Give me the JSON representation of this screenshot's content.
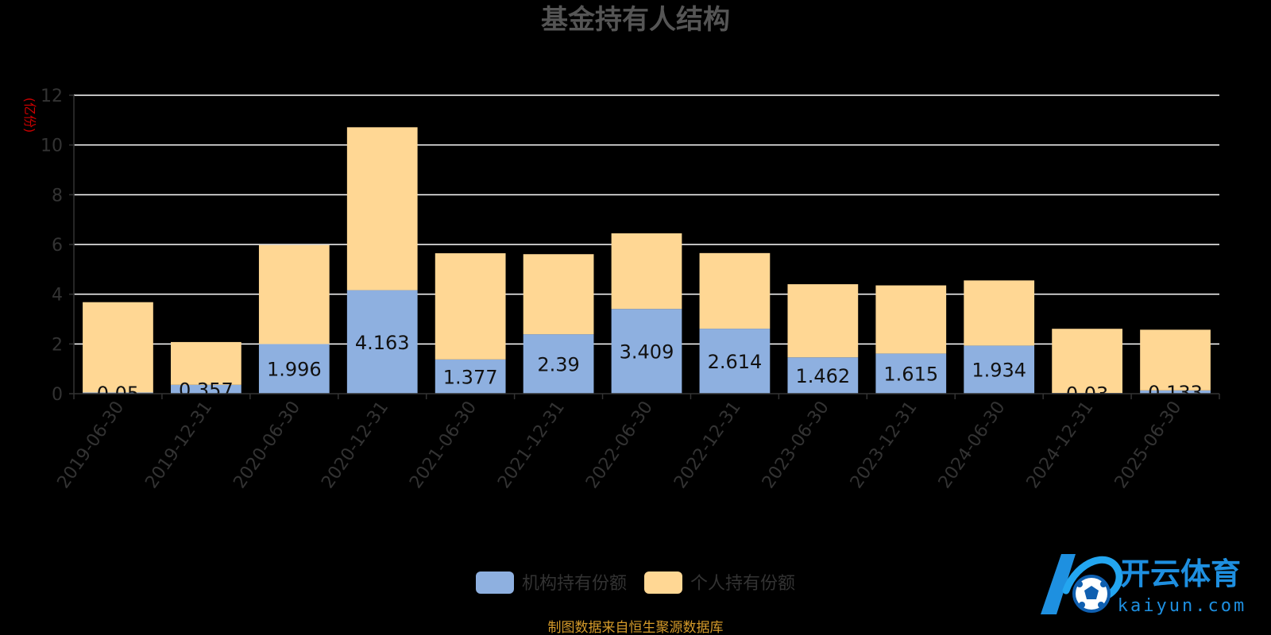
{
  "chart_data": {
    "type": "bar",
    "stacked": true,
    "title": "基金持有人结构",
    "ylabel": "(亿份)",
    "ylim": [
      0,
      12
    ],
    "yticks": [
      0,
      2,
      4,
      6,
      8,
      10,
      12
    ],
    "grid": true,
    "legend_position": "bottom-center",
    "categories": [
      "2019-06-30",
      "2019-12-31",
      "2020-06-30",
      "2020-12-31",
      "2021-06-30",
      "2021-12-31",
      "2022-06-30",
      "2022-12-31",
      "2023-06-30",
      "2023-12-31",
      "2024-06-30",
      "2024-12-31",
      "2025-06-30"
    ],
    "series": [
      {
        "name": "机构持有份额",
        "color": "#8eb0e0",
        "values": [
          0.05,
          0.357,
          1.996,
          4.163,
          1.377,
          2.39,
          3.409,
          2.614,
          1.462,
          1.615,
          1.934,
          0.03,
          0.133
        ],
        "labels": [
          "0.05",
          "0.357",
          "1.996",
          "4.163",
          "1.377",
          "2.39",
          "3.409",
          "2.614",
          "1.462",
          "1.615",
          "1.934",
          "0.03",
          "0.133"
        ]
      },
      {
        "name": "个人持有份额",
        "color": "#ffd794",
        "values": [
          3.63,
          1.72,
          3.98,
          6.55,
          4.27,
          3.22,
          3.04,
          3.04,
          2.94,
          2.74,
          2.62,
          2.58,
          2.44
        ]
      }
    ],
    "source": "制图数据来自恒生聚源数据库"
  },
  "colors": {
    "background": "#000000",
    "title": "#555555",
    "axis_text": "#333333",
    "grid": "#ffffff",
    "ylabel": "#cc0000",
    "source": "#d49a2a"
  },
  "watermark": {
    "brand": "开云体育",
    "domain": "kaiyun.com",
    "icon": "soccer-ball-icon"
  }
}
